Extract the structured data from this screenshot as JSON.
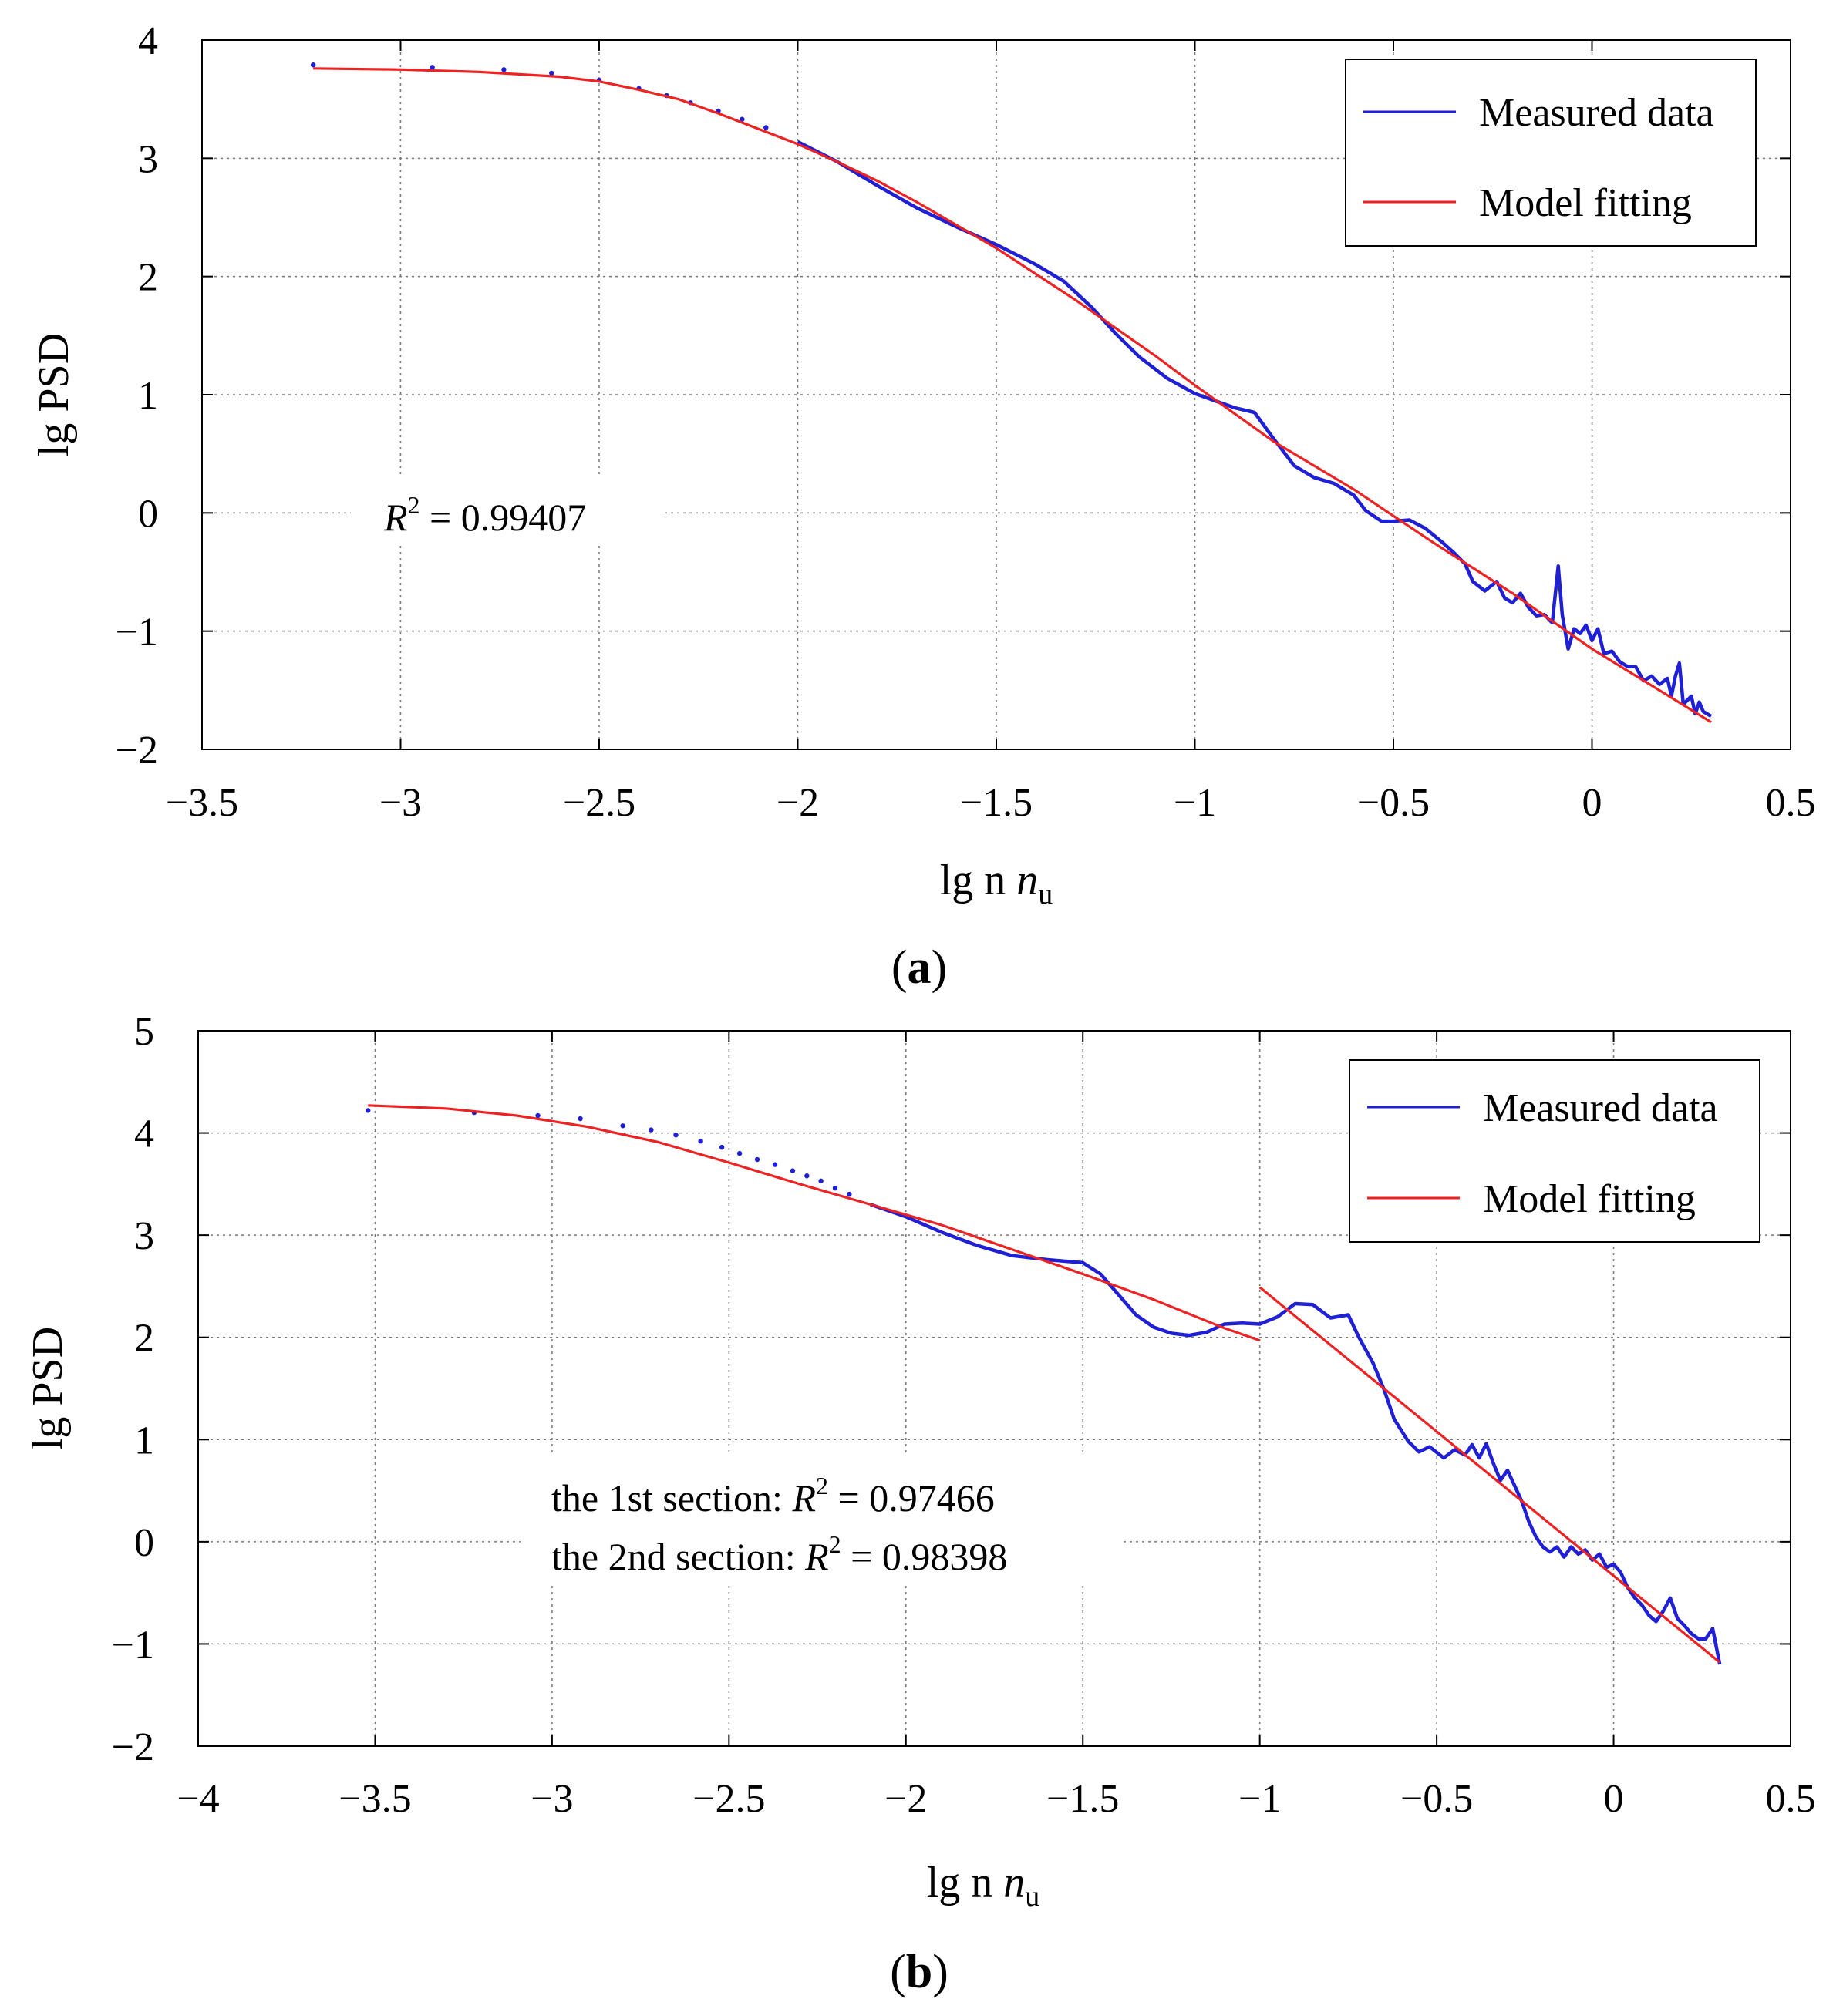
{
  "chart_data": [
    {
      "type": "line",
      "panel": "(a)",
      "panel_letter": "a",
      "xlabel": "lg n",
      "xlabel_sub": "u",
      "ylabel": "lg PSD",
      "xlim": [
        -3.5,
        0.5
      ],
      "ylim": [
        -2,
        4
      ],
      "xticks": [
        -3.5,
        -3,
        -2.5,
        -2,
        -1.5,
        -1,
        -0.5,
        0,
        0.5
      ],
      "xtick_labels": [
        "−3.5",
        "−3",
        "−2.5",
        "−2",
        "−1.5",
        "−1",
        "−0.5",
        "0",
        "0.5"
      ],
      "yticks": [
        -2,
        -1,
        0,
        1,
        2,
        3,
        4
      ],
      "ytick_labels": [
        "−2",
        "−1",
        "0",
        "1",
        "2",
        "3",
        "4"
      ],
      "grid": true,
      "legend_position": "top-right",
      "annotation": {
        "prefix": "R",
        "sup": "2",
        "text": " = 0.99407",
        "anchor": [
          -3.2,
          0
        ]
      },
      "series": [
        {
          "name": "Measured data",
          "color": "#1f1fd6",
          "sparse_points": [
            [
              -3.22,
              3.79
            ],
            [
              -2.92,
              3.77
            ],
            [
              -2.74,
              3.75
            ],
            [
              -2.62,
              3.72
            ],
            [
              -2.5,
              3.66
            ],
            [
              -2.4,
              3.59
            ],
            [
              -2.33,
              3.53
            ],
            [
              -2.27,
              3.47
            ],
            [
              -2.2,
              3.4
            ],
            [
              -2.14,
              3.33
            ],
            [
              -2.08,
              3.26
            ]
          ],
          "dense_points": [
            [
              -2.0,
              3.14
            ],
            [
              -1.9,
              2.97
            ],
            [
              -1.8,
              2.77
            ],
            [
              -1.7,
              2.58
            ],
            [
              -1.6,
              2.42
            ],
            [
              -1.5,
              2.27
            ],
            [
              -1.4,
              2.1
            ],
            [
              -1.33,
              1.96
            ],
            [
              -1.26,
              1.74
            ],
            [
              -1.2,
              1.52
            ],
            [
              -1.14,
              1.32
            ],
            [
              -1.07,
              1.14
            ],
            [
              -1.0,
              1.01
            ],
            [
              -0.95,
              0.95
            ],
            [
              -0.9,
              0.89
            ],
            [
              -0.85,
              0.85
            ],
            [
              -0.8,
              0.62
            ],
            [
              -0.75,
              0.4
            ],
            [
              -0.7,
              0.3
            ],
            [
              -0.65,
              0.25
            ],
            [
              -0.6,
              0.15
            ],
            [
              -0.57,
              0.02
            ],
            [
              -0.53,
              -0.07
            ],
            [
              -0.5,
              -0.07
            ],
            [
              -0.46,
              -0.06
            ],
            [
              -0.42,
              -0.13
            ],
            [
              -0.38,
              -0.24
            ],
            [
              -0.35,
              -0.33
            ],
            [
              -0.32,
              -0.43
            ],
            [
              -0.3,
              -0.58
            ],
            [
              -0.27,
              -0.66
            ],
            [
              -0.24,
              -0.58
            ],
            [
              -0.22,
              -0.72
            ],
            [
              -0.2,
              -0.76
            ],
            [
              -0.18,
              -0.68
            ],
            [
              -0.16,
              -0.8
            ],
            [
              -0.14,
              -0.87
            ],
            [
              -0.12,
              -0.86
            ],
            [
              -0.1,
              -0.93
            ],
            [
              -0.085,
              -0.45
            ],
            [
              -0.075,
              -0.86
            ],
            [
              -0.06,
              -1.15
            ],
            [
              -0.045,
              -0.98
            ],
            [
              -0.03,
              -1.02
            ],
            [
              -0.015,
              -0.95
            ],
            [
              0.0,
              -1.08
            ],
            [
              0.015,
              -0.98
            ],
            [
              0.03,
              -1.19
            ],
            [
              0.05,
              -1.17
            ],
            [
              0.07,
              -1.26
            ],
            [
              0.09,
              -1.3
            ],
            [
              0.11,
              -1.3
            ],
            [
              0.13,
              -1.42
            ],
            [
              0.15,
              -1.38
            ],
            [
              0.17,
              -1.45
            ],
            [
              0.19,
              -1.4
            ],
            [
              0.2,
              -1.55
            ],
            [
              0.21,
              -1.38
            ],
            [
              0.22,
              -1.27
            ],
            [
              0.23,
              -1.62
            ],
            [
              0.25,
              -1.55
            ],
            [
              0.26,
              -1.7
            ],
            [
              0.27,
              -1.6
            ],
            [
              0.28,
              -1.68
            ],
            [
              0.3,
              -1.72
            ]
          ]
        },
        {
          "name": "Model fitting",
          "color": "#ee2222",
          "points": [
            [
              -3.22,
              3.76
            ],
            [
              -3.0,
              3.75
            ],
            [
              -2.8,
              3.73
            ],
            [
              -2.6,
              3.69
            ],
            [
              -2.5,
              3.65
            ],
            [
              -2.4,
              3.58
            ],
            [
              -2.3,
              3.5
            ],
            [
              -2.2,
              3.38
            ],
            [
              -2.1,
              3.25
            ],
            [
              -2.0,
              3.12
            ],
            [
              -1.9,
              2.97
            ],
            [
              -1.8,
              2.81
            ],
            [
              -1.7,
              2.63
            ],
            [
              -1.5,
              2.24
            ],
            [
              -1.3,
              1.8
            ],
            [
              -1.1,
              1.33
            ],
            [
              -1.0,
              1.08
            ],
            [
              -0.8,
              0.6
            ],
            [
              -0.6,
              0.2
            ],
            [
              -0.4,
              -0.25
            ],
            [
              -0.2,
              -0.68
            ],
            [
              0.0,
              -1.15
            ],
            [
              0.3,
              -1.77
            ]
          ]
        }
      ]
    },
    {
      "type": "line",
      "panel": "(b)",
      "panel_letter": "b",
      "xlabel": "lg n",
      "xlabel_sub": "u",
      "ylabel": "lg PSD",
      "xlim": [
        -4,
        0.5
      ],
      "ylim": [
        -2,
        5
      ],
      "xticks": [
        -4,
        -3.5,
        -3,
        -2.5,
        -2,
        -1.5,
        -1,
        -0.5,
        0,
        0.5
      ],
      "xtick_labels": [
        "−4",
        "−3.5",
        "−3",
        "−2.5",
        "−2",
        "−1.5",
        "−1",
        "−0.5",
        "0",
        "0.5"
      ],
      "yticks": [
        -2,
        -1,
        0,
        1,
        2,
        3,
        4,
        5
      ],
      "ytick_labels": [
        "−2",
        "−1",
        "0",
        "1",
        "2",
        "3",
        "4",
        "5"
      ],
      "grid": true,
      "legend_position": "top-right",
      "annotation_lines": [
        {
          "prefix": "the 1st section: ",
          "sup_base": "R",
          "sup": "2",
          "text": " = 0.97466"
        },
        {
          "prefix": "the 2nd section: ",
          "sup_base": "R",
          "sup": "2",
          "text": " = 0.98398"
        }
      ],
      "series": [
        {
          "name": "Measured data",
          "color": "#1f1fd6",
          "sparse_points": [
            [
              -3.52,
              4.22
            ],
            [
              -3.22,
              4.2
            ],
            [
              -3.04,
              4.17
            ],
            [
              -2.92,
              4.14
            ],
            [
              -2.8,
              4.07
            ],
            [
              -2.72,
              4.03
            ],
            [
              -2.65,
              3.98
            ],
            [
              -2.58,
              3.92
            ],
            [
              -2.52,
              3.86
            ],
            [
              -2.47,
              3.8
            ],
            [
              -2.42,
              3.74
            ],
            [
              -2.37,
              3.69
            ],
            [
              -2.32,
              3.63
            ],
            [
              -2.28,
              3.58
            ],
            [
              -2.24,
              3.53
            ],
            [
              -2.2,
              3.46
            ],
            [
              -2.16,
              3.4
            ]
          ],
          "dense_points": [
            [
              -2.1,
              3.3
            ],
            [
              -2.0,
              3.18
            ],
            [
              -1.9,
              3.03
            ],
            [
              -1.8,
              2.9
            ],
            [
              -1.7,
              2.8
            ],
            [
              -1.6,
              2.76
            ],
            [
              -1.5,
              2.73
            ],
            [
              -1.45,
              2.62
            ],
            [
              -1.4,
              2.42
            ],
            [
              -1.35,
              2.22
            ],
            [
              -1.3,
              2.1
            ],
            [
              -1.25,
              2.04
            ],
            [
              -1.2,
              2.02
            ],
            [
              -1.15,
              2.05
            ],
            [
              -1.1,
              2.13
            ],
            [
              -1.05,
              2.14
            ],
            [
              -1.0,
              2.13
            ],
            [
              -0.95,
              2.2
            ],
            [
              -0.9,
              2.33
            ],
            [
              -0.85,
              2.32
            ],
            [
              -0.8,
              2.19
            ],
            [
              -0.75,
              2.22
            ],
            [
              -0.72,
              2.0
            ],
            [
              -0.68,
              1.75
            ],
            [
              -0.65,
              1.5
            ],
            [
              -0.62,
              1.2
            ],
            [
              -0.58,
              0.98
            ],
            [
              -0.55,
              0.88
            ],
            [
              -0.52,
              0.93
            ],
            [
              -0.48,
              0.82
            ],
            [
              -0.45,
              0.9
            ],
            [
              -0.42,
              0.85
            ],
            [
              -0.4,
              0.95
            ],
            [
              -0.38,
              0.82
            ],
            [
              -0.36,
              0.96
            ],
            [
              -0.34,
              0.77
            ],
            [
              -0.32,
              0.6
            ],
            [
              -0.3,
              0.7
            ],
            [
              -0.28,
              0.55
            ],
            [
              -0.26,
              0.4
            ],
            [
              -0.24,
              0.2
            ],
            [
              -0.22,
              0.05
            ],
            [
              -0.2,
              -0.05
            ],
            [
              -0.18,
              -0.1
            ],
            [
              -0.16,
              -0.05
            ],
            [
              -0.14,
              -0.15
            ],
            [
              -0.12,
              -0.05
            ],
            [
              -0.1,
              -0.12
            ],
            [
              -0.08,
              -0.08
            ],
            [
              -0.06,
              -0.18
            ],
            [
              -0.04,
              -0.12
            ],
            [
              -0.02,
              -0.25
            ],
            [
              0.0,
              -0.22
            ],
            [
              0.02,
              -0.3
            ],
            [
              0.04,
              -0.45
            ],
            [
              0.06,
              -0.55
            ],
            [
              0.08,
              -0.62
            ],
            [
              0.1,
              -0.72
            ],
            [
              0.12,
              -0.78
            ],
            [
              0.14,
              -0.68
            ],
            [
              0.16,
              -0.55
            ],
            [
              0.18,
              -0.75
            ],
            [
              0.2,
              -0.82
            ],
            [
              0.22,
              -0.9
            ],
            [
              0.24,
              -0.95
            ],
            [
              0.26,
              -0.95
            ],
            [
              0.28,
              -0.85
            ],
            [
              0.3,
              -1.2
            ]
          ]
        },
        {
          "name": "Model fitting",
          "color": "#ee2222",
          "points_section1": [
            [
              -3.52,
              4.27
            ],
            [
              -3.3,
              4.24
            ],
            [
              -3.1,
              4.17
            ],
            [
              -2.9,
              4.06
            ],
            [
              -2.7,
              3.91
            ],
            [
              -2.5,
              3.71
            ],
            [
              -2.3,
              3.5
            ],
            [
              -2.1,
              3.3
            ],
            [
              -1.9,
              3.1
            ],
            [
              -1.7,
              2.86
            ],
            [
              -1.5,
              2.62
            ],
            [
              -1.3,
              2.37
            ],
            [
              -1.1,
              2.09
            ],
            [
              -1.0,
              1.97
            ]
          ],
          "points_section2": [
            [
              -1.0,
              2.49
            ],
            [
              0.3,
              -1.18
            ]
          ]
        }
      ]
    }
  ]
}
